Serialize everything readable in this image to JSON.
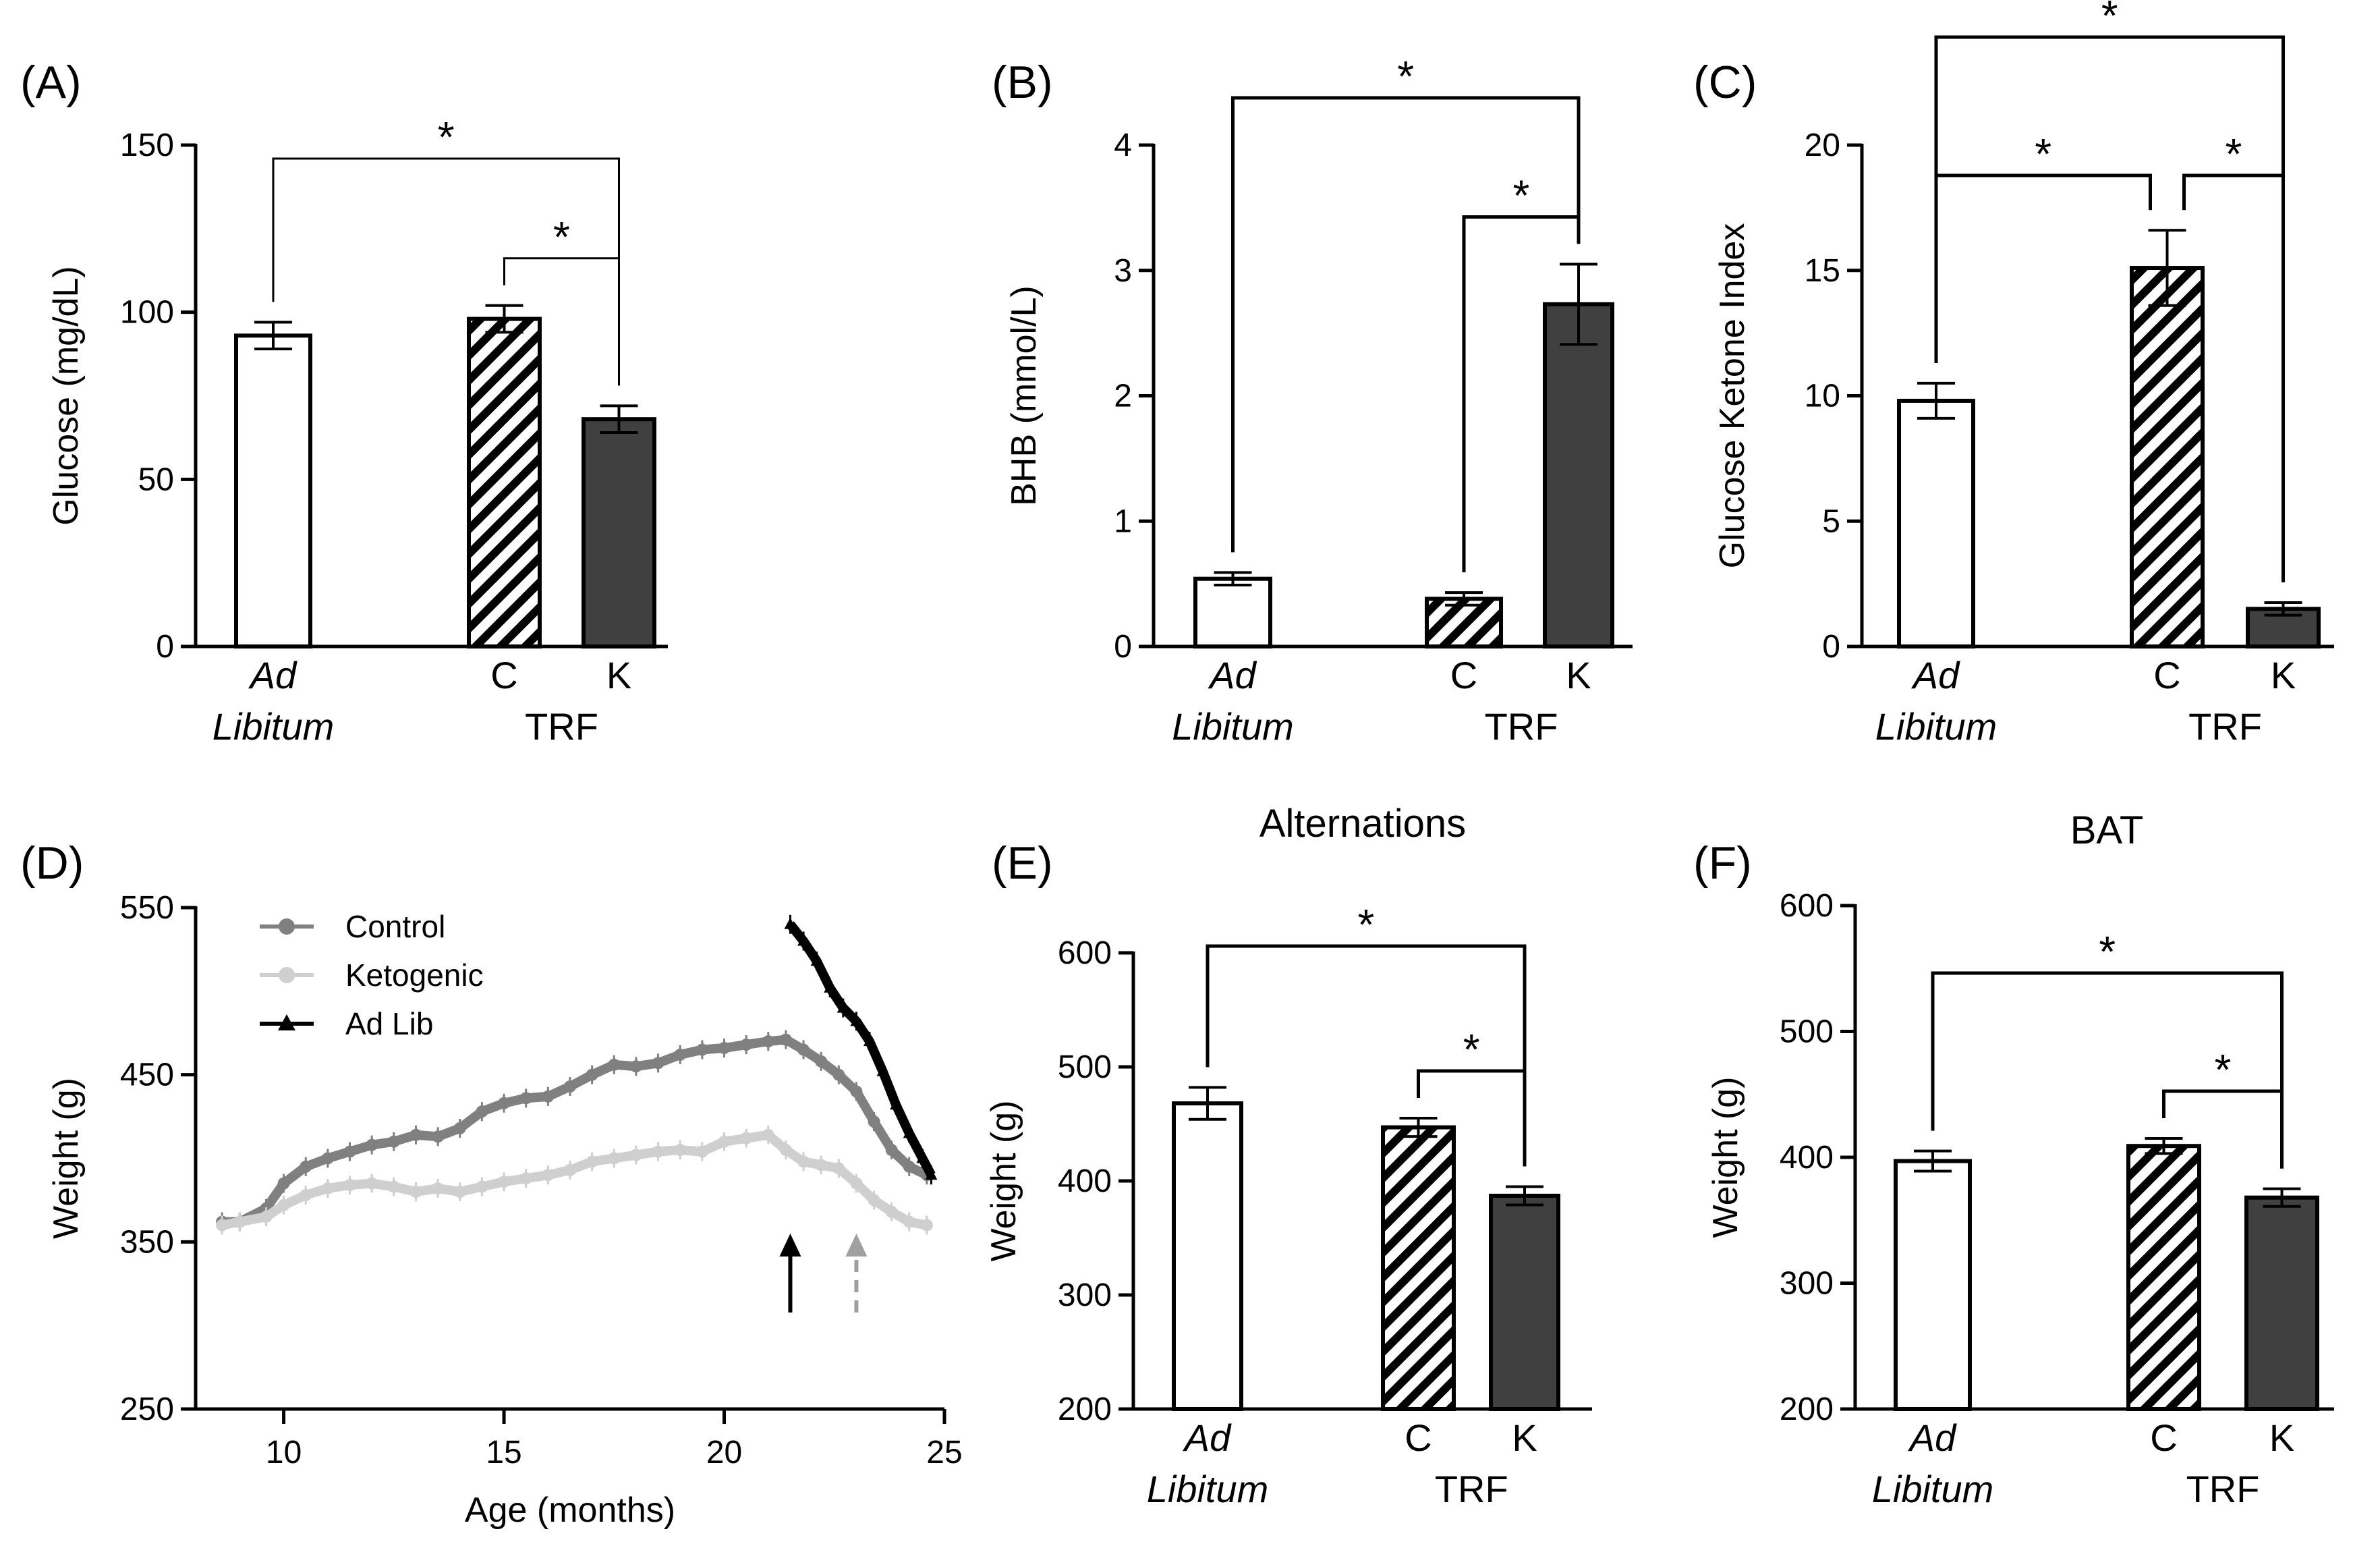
{
  "colors": {
    "adlib_fill": "#ffffff",
    "trf_c_hatch": "#000000",
    "trf_k_fill": "#404040",
    "control_line": "#808080",
    "ketogenic_line": "#cfcfcf",
    "adlib_line": "#000000"
  },
  "groups": {
    "ad": "Ad",
    "libitum": "Libitum",
    "c": "C",
    "k": "K",
    "trf": "TRF"
  },
  "chart_data": [
    {
      "id": "A",
      "label": "(A)",
      "type": "bar",
      "title": "",
      "ylabel": "Glucose (mg/dL)",
      "ylim": [
        0,
        150
      ],
      "yticks": [
        "0",
        "50",
        "100",
        "150"
      ],
      "categories": [
        "Ad Libitum",
        "C",
        "K"
      ],
      "values": [
        93,
        98,
        68
      ],
      "errors": [
        4,
        4,
        4
      ],
      "comparisons": [
        {
          "from": 0,
          "to": 2,
          "label": "*"
        },
        {
          "from": 1,
          "to": 2,
          "label": "*"
        }
      ]
    },
    {
      "id": "B",
      "label": "(B)",
      "type": "bar",
      "title": "",
      "ylabel": "BHB (mmol/L)",
      "ylim": [
        0,
        4
      ],
      "yticks": [
        "0",
        "1",
        "2",
        "3",
        "4"
      ],
      "categories": [
        "Ad Libitum",
        "C",
        "K"
      ],
      "values": [
        0.54,
        0.38,
        2.73
      ],
      "errors": [
        0.05,
        0.05,
        0.32
      ],
      "comparisons": [
        {
          "from": 0,
          "to": 2,
          "label": "*"
        },
        {
          "from": 1,
          "to": 2,
          "label": "*"
        }
      ]
    },
    {
      "id": "C",
      "label": "(C)",
      "type": "bar",
      "title": "",
      "ylabel": "Glucose Ketone Index",
      "ylim": [
        0,
        20
      ],
      "yticks": [
        "0",
        "5",
        "10",
        "15",
        "20"
      ],
      "categories": [
        "Ad Libitum",
        "C",
        "K"
      ],
      "values": [
        9.8,
        15.1,
        1.5
      ],
      "errors": [
        0.7,
        1.5,
        0.25
      ],
      "comparisons": [
        {
          "from": 0,
          "to": 2,
          "label": "*"
        },
        {
          "from": 0,
          "to": 1,
          "label": "*"
        },
        {
          "from": 1,
          "to": 2,
          "label": "*"
        }
      ]
    },
    {
      "id": "D",
      "label": "(D)",
      "type": "line",
      "title": "",
      "xlabel": "Age (months)",
      "ylabel": "Weight (g)",
      "xlim": [
        8,
        25
      ],
      "ylim": [
        250,
        550
      ],
      "xticks": [
        "10",
        "15",
        "20",
        "25"
      ],
      "yticks": [
        "250",
        "350",
        "450",
        "550"
      ],
      "legend_position": "top-left",
      "series": [
        {
          "name": "Control",
          "marker": "circle",
          "points": [
            [
              8.6,
              362
            ],
            [
              9,
              362
            ],
            [
              9.6,
              370
            ],
            [
              10,
              385
            ],
            [
              10.5,
              395
            ],
            [
              11,
              400
            ],
            [
              11.5,
              404
            ],
            [
              12,
              408
            ],
            [
              12.5,
              410
            ],
            [
              13,
              414
            ],
            [
              13.5,
              413
            ],
            [
              14,
              418
            ],
            [
              14.5,
              428
            ],
            [
              15,
              433
            ],
            [
              15.5,
              436
            ],
            [
              16,
              437
            ],
            [
              16.5,
              443
            ],
            [
              17,
              450
            ],
            [
              17.5,
              456
            ],
            [
              18,
              455
            ],
            [
              18.5,
              457
            ],
            [
              19,
              462
            ],
            [
              19.5,
              465
            ],
            [
              20,
              466
            ],
            [
              20.5,
              468
            ],
            [
              21,
              470
            ],
            [
              21.4,
              471
            ],
            [
              21.8,
              465
            ],
            [
              22.2,
              458
            ],
            [
              22.6,
              450
            ],
            [
              23,
              440
            ],
            [
              23.4,
              422
            ],
            [
              23.8,
              405
            ],
            [
              24.2,
              395
            ],
            [
              24.6,
              390
            ]
          ]
        },
        {
          "name": "Ketogenic",
          "marker": "circle",
          "points": [
            [
              8.6,
              360
            ],
            [
              9,
              362
            ],
            [
              9.6,
              365
            ],
            [
              10,
              372
            ],
            [
              10.5,
              378
            ],
            [
              11,
              382
            ],
            [
              11.5,
              384
            ],
            [
              12,
              385
            ],
            [
              12.5,
              383
            ],
            [
              13,
              380
            ],
            [
              13.5,
              382
            ],
            [
              14,
              380
            ],
            [
              14.5,
              383
            ],
            [
              15,
              386
            ],
            [
              15.5,
              388
            ],
            [
              16,
              390
            ],
            [
              16.5,
              393
            ],
            [
              17,
              398
            ],
            [
              17.5,
              400
            ],
            [
              18,
              402
            ],
            [
              18.5,
              404
            ],
            [
              19,
              405
            ],
            [
              19.5,
              404
            ],
            [
              20,
              410
            ],
            [
              20.5,
              412
            ],
            [
              21,
              414
            ],
            [
              21.4,
              405
            ],
            [
              21.8,
              398
            ],
            [
              22.2,
              396
            ],
            [
              22.6,
              394
            ],
            [
              23,
              385
            ],
            [
              23.4,
              375
            ],
            [
              23.8,
              368
            ],
            [
              24.2,
              362
            ],
            [
              24.6,
              360
            ]
          ]
        },
        {
          "name": "Ad Lib",
          "marker": "triangle",
          "points": [
            [
              21.5,
              540
            ],
            [
              21.8,
              530
            ],
            [
              22.1,
              518
            ],
            [
              22.4,
              502
            ],
            [
              22.7,
              490
            ],
            [
              23,
              482
            ],
            [
              23.3,
              470
            ],
            [
              23.6,
              452
            ],
            [
              23.9,
              432
            ],
            [
              24.2,
              415
            ],
            [
              24.5,
              400
            ],
            [
              24.7,
              390
            ]
          ]
        }
      ],
      "arrows": [
        {
          "x": 21.5,
          "style": "solid",
          "color": "#000000"
        },
        {
          "x": 23,
          "style": "dashed",
          "color": "#a0a0a0"
        }
      ]
    },
    {
      "id": "E",
      "label": "(E)",
      "type": "bar",
      "title": "Alternations",
      "ylabel": "Weight (g)",
      "ylim": [
        200,
        600
      ],
      "yticks": [
        "200",
        "300",
        "400",
        "500",
        "600"
      ],
      "categories": [
        "Ad Libitum",
        "C",
        "K"
      ],
      "values": [
        468,
        447,
        387
      ],
      "errors": [
        14,
        8,
        8
      ],
      "comparisons": [
        {
          "from": 0,
          "to": 2,
          "label": "*"
        },
        {
          "from": 1,
          "to": 2,
          "label": "*"
        }
      ]
    },
    {
      "id": "F",
      "label": "(F)",
      "type": "bar",
      "title": "BAT",
      "ylabel": "Weight (g)",
      "ylim": [
        200,
        600
      ],
      "yticks": [
        "200",
        "300",
        "400",
        "500",
        "600"
      ],
      "categories": [
        "Ad Libitum",
        "C",
        "K"
      ],
      "values": [
        397,
        409,
        368
      ],
      "errors": [
        8,
        6,
        7
      ],
      "comparisons": [
        {
          "from": 0,
          "to": 2,
          "label": "*"
        },
        {
          "from": 1,
          "to": 2,
          "label": "*"
        }
      ]
    }
  ]
}
